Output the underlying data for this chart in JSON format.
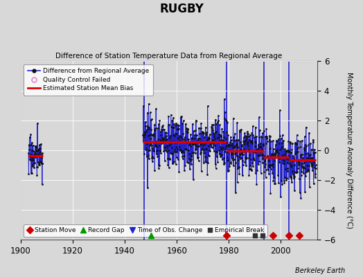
{
  "title": "RUGBY",
  "subtitle": "Difference of Station Temperature Data from Regional Average",
  "ylabel": "Monthly Temperature Anomaly Difference (°C)",
  "background_color": "#d8d8d8",
  "plot_bg_color": "#d8d8d8",
  "xlim": [
    1900,
    2014
  ],
  "ylim": [
    -6,
    6
  ],
  "yticks": [
    -6,
    -4,
    -2,
    0,
    2,
    4,
    6
  ],
  "xticks": [
    1900,
    1920,
    1940,
    1960,
    1980,
    2000
  ],
  "berkeley_earth_text": "Berkeley Earth",
  "segments": [
    {
      "x_start": 1903.0,
      "x_end": 1908.5,
      "mean": -0.35,
      "color": "#dd0000"
    },
    {
      "x_start": 1947.0,
      "x_end": 1979.0,
      "mean": 0.55,
      "color": "#dd0000"
    },
    {
      "x_start": 1979.0,
      "x_end": 1993.5,
      "mean": -0.05,
      "color": "#dd0000"
    },
    {
      "x_start": 1993.5,
      "x_end": 2003.0,
      "mean": -0.45,
      "color": "#dd0000"
    },
    {
      "x_start": 2003.0,
      "x_end": 2013.5,
      "mean": -0.65,
      "color": "#dd0000"
    }
  ],
  "vertical_lines": [
    {
      "x": 1947.5,
      "color": "#2222cc",
      "lw": 1.2
    },
    {
      "x": 1979.0,
      "color": "#2222cc",
      "lw": 1.2
    },
    {
      "x": 1993.5,
      "color": "#2222cc",
      "lw": 1.2
    },
    {
      "x": 2003.0,
      "color": "#2222cc",
      "lw": 1.2
    }
  ],
  "event_markers": [
    {
      "x": 1950,
      "type": "record_gap",
      "color": "#009900",
      "marker": "^",
      "size": 6
    },
    {
      "x": 1979,
      "type": "station_move",
      "color": "#cc0000",
      "marker": "D",
      "size": 5
    },
    {
      "x": 1990,
      "type": "empirical_break",
      "color": "#333333",
      "marker": "s",
      "size": 5
    },
    {
      "x": 1993,
      "type": "empirical_break",
      "color": "#333333",
      "marker": "s",
      "size": 5
    },
    {
      "x": 1997,
      "type": "station_move",
      "color": "#cc0000",
      "marker": "D",
      "size": 5
    },
    {
      "x": 2003,
      "type": "station_move",
      "color": "#cc0000",
      "marker": "D",
      "size": 5
    },
    {
      "x": 2007,
      "type": "station_move",
      "color": "#cc0000",
      "marker": "D",
      "size": 5
    }
  ],
  "periods": [
    {
      "t_start": 1903.0,
      "t_end": 1908.5,
      "mean": -0.35,
      "std": 0.65
    },
    {
      "t_start": 1947.0,
      "t_end": 1979.08,
      "mean": 0.55,
      "std": 0.9
    },
    {
      "t_start": 1979.0,
      "t_end": 1993.5,
      "mean": -0.05,
      "std": 0.85
    },
    {
      "t_start": 1993.5,
      "t_end": 2003.0,
      "mean": -0.45,
      "std": 0.85
    },
    {
      "t_start": 2003.0,
      "t_end": 2013.5,
      "mean": -0.65,
      "std": 0.85
    }
  ],
  "seed": 17,
  "data_color": "#2222cc",
  "point_color": "#111111",
  "line_width": 0.7
}
